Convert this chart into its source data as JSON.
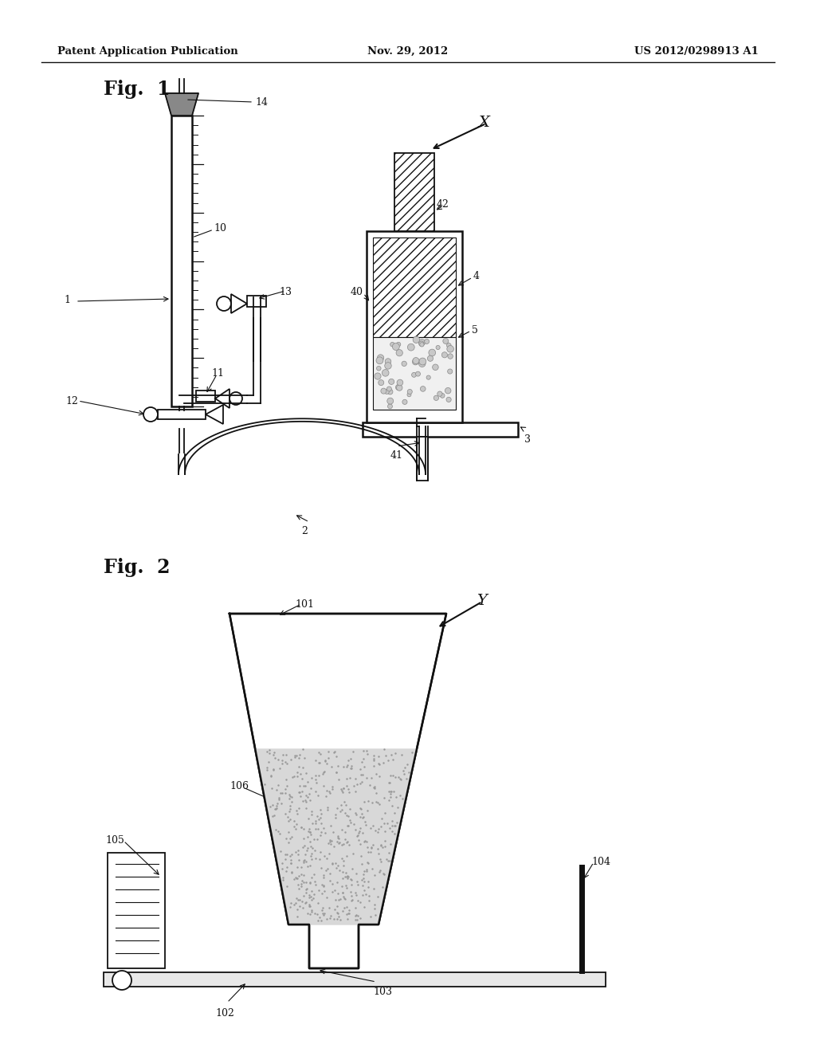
{
  "bg_color": "#ffffff",
  "header_left": "Patent Application Publication",
  "header_center": "Nov. 29, 2012",
  "header_right": "US 2012/0298913 A1",
  "fig1_label": "Fig.  1",
  "fig2_label": "Fig.  2",
  "label_X": "X",
  "label_Y": "Y"
}
